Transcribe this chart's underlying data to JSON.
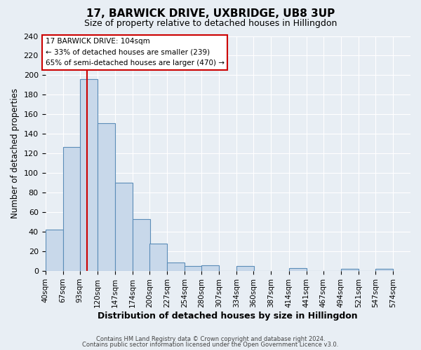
{
  "title": "17, BARWICK DRIVE, UXBRIDGE, UB8 3UP",
  "subtitle": "Size of property relative to detached houses in Hillingdon",
  "xlabel": "Distribution of detached houses by size in Hillingdon",
  "ylabel": "Number of detached properties",
  "bin_labels": [
    "40sqm",
    "67sqm",
    "93sqm",
    "120sqm",
    "147sqm",
    "174sqm",
    "200sqm",
    "227sqm",
    "254sqm",
    "280sqm",
    "307sqm",
    "334sqm",
    "360sqm",
    "387sqm",
    "414sqm",
    "441sqm",
    "467sqm",
    "494sqm",
    "521sqm",
    "547sqm",
    "574sqm"
  ],
  "bin_edges": [
    40,
    67,
    93,
    120,
    147,
    174,
    200,
    227,
    254,
    280,
    307,
    334,
    360,
    387,
    414,
    441,
    467,
    494,
    521,
    547,
    574
  ],
  "bar_heights": [
    42,
    127,
    196,
    151,
    90,
    53,
    28,
    9,
    5,
    6,
    0,
    5,
    0,
    0,
    3,
    0,
    0,
    2,
    0,
    2
  ],
  "bar_color": "#c8d8ea",
  "bar_edge_color": "#5b8db8",
  "vline_x": 104,
  "vline_color": "#cc0000",
  "ylim": [
    0,
    240
  ],
  "yticks": [
    0,
    20,
    40,
    60,
    80,
    100,
    120,
    140,
    160,
    180,
    200,
    220,
    240
  ],
  "annotation_title": "17 BARWICK DRIVE: 104sqm",
  "annotation_line1": "← 33% of detached houses are smaller (239)",
  "annotation_line2": "65% of semi-detached houses are larger (470) →",
  "annotation_box_color": "#ffffff",
  "annotation_box_edge": "#cc0000",
  "footer1": "Contains HM Land Registry data © Crown copyright and database right 2024.",
  "footer2": "Contains public sector information licensed under the Open Government Licence v3.0.",
  "bg_color": "#e8eef4",
  "plot_bg_color": "#e8eef4",
  "grid_color": "#ffffff",
  "title_fontsize": 11,
  "subtitle_fontsize": 9
}
